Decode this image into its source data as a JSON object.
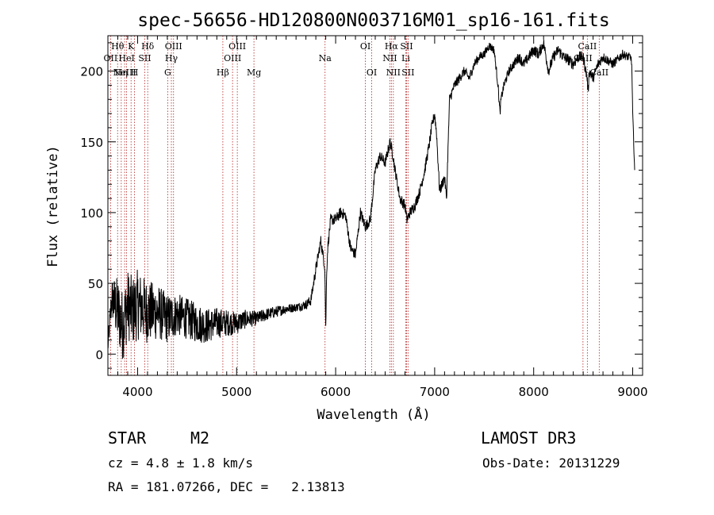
{
  "chart_data": {
    "type": "line",
    "title": "spec-56656-HD120800N003716M01_sp16-161.fits",
    "xlabel": "Wavelength (Å)",
    "ylabel": "Flux (relative)",
    "xlim": [
      3700,
      9100
    ],
    "ylim": [
      -15,
      225
    ],
    "xticks": [
      4000,
      5000,
      6000,
      7000,
      8000,
      9000
    ],
    "yticks": [
      0,
      50,
      100,
      150,
      200
    ],
    "series": [
      {
        "name": "spectrum",
        "noise": [
          [
            3700,
            7
          ],
          [
            3800,
            25
          ],
          [
            4000,
            25
          ],
          [
            4200,
            20
          ],
          [
            4400,
            15
          ],
          [
            4600,
            14
          ],
          [
            4800,
            11
          ],
          [
            5000,
            8
          ],
          [
            5200,
            5
          ],
          [
            5400,
            4
          ],
          [
            5600,
            3
          ],
          [
            5800,
            4
          ],
          [
            6000,
            4
          ],
          [
            6500,
            4
          ],
          [
            7000,
            4
          ],
          [
            7600,
            3
          ],
          [
            8000,
            4
          ],
          [
            8500,
            4
          ],
          [
            9000,
            3
          ]
        ],
        "x": [
          3700,
          3740,
          3800,
          3850,
          3900,
          3950,
          4000,
          4100,
          4200,
          4300,
          4400,
          4500,
          4600,
          4700,
          4800,
          4900,
          5000,
          5100,
          5200,
          5300,
          5400,
          5500,
          5600,
          5700,
          5750,
          5800,
          5850,
          5890,
          5900,
          5910,
          5920,
          5950,
          6000,
          6050,
          6100,
          6150,
          6200,
          6250,
          6300,
          6350,
          6400,
          6450,
          6500,
          6550,
          6580,
          6600,
          6650,
          6700,
          6720,
          6750,
          6800,
          6850,
          6900,
          6950,
          6970,
          7000,
          7020,
          7050,
          7100,
          7120,
          7150,
          7200,
          7250,
          7300,
          7350,
          7400,
          7450,
          7500,
          7550,
          7600,
          7640,
          7660,
          7670,
          7700,
          7750,
          7800,
          7850,
          7900,
          7950,
          8000,
          8050,
          8100,
          8150,
          8200,
          8250,
          8300,
          8350,
          8400,
          8450,
          8500,
          8540,
          8550,
          8560,
          8600,
          8650,
          8700,
          8800,
          8900,
          8950,
          8980,
          8990,
          9000,
          9020
        ],
        "y": [
          5,
          40,
          30,
          20,
          35,
          30,
          35,
          30,
          30,
          25,
          28,
          25,
          22,
          20,
          22,
          22,
          22,
          25,
          25,
          28,
          30,
          32,
          33,
          35,
          38,
          60,
          80,
          62,
          18,
          60,
          75,
          95,
          95,
          100,
          98,
          75,
          70,
          100,
          90,
          95,
          130,
          140,
          135,
          150,
          140,
          130,
          110,
          105,
          95,
          100,
          105,
          115,
          130,
          150,
          160,
          170,
          155,
          115,
          125,
          110,
          180,
          190,
          195,
          200,
          195,
          205,
          210,
          212,
          218,
          215,
          190,
          170,
          180,
          190,
          200,
          205,
          210,
          205,
          210,
          215,
          212,
          220,
          200,
          210,
          215,
          210,
          208,
          205,
          210,
          210,
          195,
          185,
          200,
          195,
          205,
          210,
          205,
          212,
          210,
          210,
          205,
          170,
          130
        ]
      }
    ],
    "emission_lines": [
      {
        "wavelength": 3727,
        "label": "OII",
        "row": 2
      },
      {
        "wavelength": 3798,
        "label": "Hθ",
        "row": 1
      },
      {
        "wavelength": 3835,
        "label": "Hη",
        "row": 3
      },
      {
        "wavelength": 3869,
        "label": "NeIII",
        "row": 3
      },
      {
        "wavelength": 3889,
        "label": "HeI",
        "row": 2
      },
      {
        "wavelength": 3934,
        "label": "K",
        "row": 1
      },
      {
        "wavelength": 3969,
        "label": "H",
        "row": 3
      },
      {
        "wavelength": 4072,
        "label": "SII",
        "row": 2
      },
      {
        "wavelength": 4102,
        "label": "Hδ",
        "row": 1
      },
      {
        "wavelength": 4304,
        "label": "G",
        "row": 3
      },
      {
        "wavelength": 4341,
        "label": "Hγ",
        "row": 2
      },
      {
        "wavelength": 4363,
        "label": "OIII",
        "row": 1
      },
      {
        "wavelength": 4861,
        "label": "Hβ",
        "row": 3
      },
      {
        "wavelength": 4959,
        "label": "OIII",
        "row": 2
      },
      {
        "wavelength": 5007,
        "label": "OIII",
        "row": 1
      },
      {
        "wavelength": 5175,
        "label": "Mg",
        "row": 3
      },
      {
        "wavelength": 5893,
        "label": "Na",
        "row": 2
      },
      {
        "wavelength": 6300,
        "label": "OI",
        "row": 1
      },
      {
        "wavelength": 6364,
        "label": "OI",
        "row": 3
      },
      {
        "wavelength": 6548,
        "label": "NII",
        "row": 2
      },
      {
        "wavelength": 6563,
        "label": "Hα",
        "row": 1
      },
      {
        "wavelength": 6583,
        "label": "NII",
        "row": 3
      },
      {
        "wavelength": 6708,
        "label": "Li",
        "row": 2
      },
      {
        "wavelength": 6716,
        "label": "SII",
        "row": 1
      },
      {
        "wavelength": 6731,
        "label": "SII",
        "row": 3
      },
      {
        "wavelength": 8498,
        "label": "CaII",
        "row": 2
      },
      {
        "wavelength": 8542,
        "label": "CaII",
        "row": 1
      },
      {
        "wavelength": 8662,
        "label": "CaII",
        "row": 3
      }
    ],
    "line_color": "#b22222"
  },
  "info": {
    "object_type": "STAR",
    "subclass": "M2",
    "survey": "LAMOST DR3",
    "cz": "cz = 4.8 ± 1.8 km/s",
    "obs_date": "Obs-Date: 20131229",
    "coords": "RA = 181.07266, DEC =   2.13813"
  }
}
